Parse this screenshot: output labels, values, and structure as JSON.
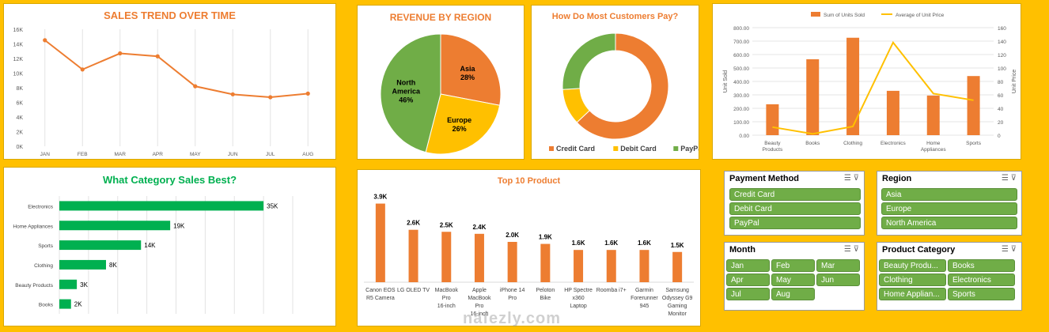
{
  "sales_trend": {
    "title": "SALES TREND OVER TIME",
    "chart_data": {
      "type": "line",
      "categories": [
        "JAN",
        "FEB",
        "MAR",
        "APR",
        "MAY",
        "JUN",
        "JUL",
        "AUG"
      ],
      "values": [
        14500,
        10500,
        12700,
        12300,
        8200,
        7100,
        6700,
        7200
      ],
      "y_ticks": [
        "0K",
        "2K",
        "4K",
        "6K",
        "8K",
        "10K",
        "12K",
        "14K",
        "16K"
      ],
      "ylim": [
        0,
        16000
      ],
      "color": "#ED7D31"
    }
  },
  "revenue_region": {
    "title": "REVENUE BY REGION",
    "chart_data": {
      "type": "pie",
      "slices": [
        {
          "label": "Asia",
          "value": 28,
          "display": "28%",
          "color": "#ED7D31"
        },
        {
          "label": "Europe",
          "value": 26,
          "display": "26%",
          "color": "#FFC000"
        },
        {
          "label": "North America",
          "value": 46,
          "display": "46%",
          "color": "#70AD47"
        }
      ]
    }
  },
  "payment": {
    "title": "How Do Most Customers Pay?",
    "chart_data": {
      "type": "pie",
      "slices": [
        {
          "label": "Credit Card",
          "value": 63,
          "color": "#ED7D31"
        },
        {
          "label": "Debit Card",
          "value": 11,
          "color": "#FFC000"
        },
        {
          "label": "PayPal",
          "value": 26,
          "color": "#70AD47"
        }
      ],
      "legend": [
        "Credit Card",
        "Debit Card",
        "PayPal"
      ]
    }
  },
  "units_price": {
    "chart_data": {
      "type": "bar",
      "categories": [
        "Beauty Products",
        "Books",
        "Clothing",
        "Electronics",
        "Home Appliances",
        "Sports"
      ],
      "series": [
        {
          "name": "Sum of Units Sold",
          "values": [
            230,
            565,
            725,
            330,
            295,
            440
          ],
          "color": "#ED7D31"
        },
        {
          "name": "Average of Unit Price",
          "values": [
            12,
            2,
            13,
            138,
            62,
            52
          ],
          "color": "#FFC000"
        }
      ],
      "y_left_ticks": [
        "0.00",
        "100.00",
        "200.00",
        "300.00",
        "400.00",
        "500.00",
        "600.00",
        "700.00",
        "800.00"
      ],
      "y_right_ticks": [
        "0",
        "20",
        "40",
        "60",
        "80",
        "100",
        "120",
        "140",
        "160"
      ],
      "ylabel": "Unit Sold",
      "y2label": "Unit Price",
      "ylim": [
        0,
        800
      ],
      "y2lim": [
        0,
        160
      ]
    }
  },
  "category_sales": {
    "title": "What Category Sales Best?",
    "chart_data": {
      "type": "bar",
      "orientation": "horizontal",
      "categories": [
        "Electronics",
        "Home Appliances",
        "Sports",
        "Clothing",
        "Beauty Products",
        "Books"
      ],
      "values": [
        35000,
        19000,
        14000,
        8000,
        3000,
        2000
      ],
      "labels": [
        "35K",
        "19K",
        "14K",
        "8K",
        "3K",
        "2K"
      ],
      "xlim": [
        0,
        40000
      ],
      "color": "#00B050"
    }
  },
  "top10": {
    "title": "Top 10 Product",
    "chart_data": {
      "type": "bar",
      "categories": [
        "Canon EOS R5 Camera",
        "LG OLED TV",
        "MacBook Pro 16-inch",
        "Apple MacBook Pro 16-inch",
        "iPhone 14 Pro",
        "Peloton Bike",
        "HP Spectre x360 Laptop",
        "Roomba i7+",
        "Garmin Forerunner 945",
        "Samsung Odyssey G9 Gaming Monitor"
      ],
      "values": [
        3900,
        2600,
        2500,
        2400,
        2000,
        1900,
        1600,
        1600,
        1600,
        1500
      ],
      "labels": [
        "3.9K",
        "2.6K",
        "2.5K",
        "2.4K",
        "2.0K",
        "1.9K",
        "1.6K",
        "1.6K",
        "1.6K",
        "1.5K"
      ],
      "ylim": [
        0,
        4000
      ],
      "color": "#ED7D31"
    }
  },
  "slicers": {
    "payment_method": {
      "title": "Payment Method",
      "items": [
        "Credit Card",
        "Debit Card",
        "PayPal"
      ]
    },
    "region": {
      "title": "Region",
      "items": [
        "Asia",
        "Europe",
        "North America"
      ]
    },
    "month": {
      "title": "Month",
      "items": [
        "Jan",
        "Feb",
        "Mar",
        "Apr",
        "May",
        "Jun",
        "Jul",
        "Aug"
      ]
    },
    "product_category": {
      "title": "Product Category",
      "items": [
        "Beauty Produ...",
        "Books",
        "Clothing",
        "Electronics",
        "Home Applian...",
        "Sports"
      ]
    }
  },
  "icons": {
    "multi_select": "multi-select-icon",
    "clear_filter": "clear-filter-icon"
  },
  "watermark": "nafezly.com"
}
